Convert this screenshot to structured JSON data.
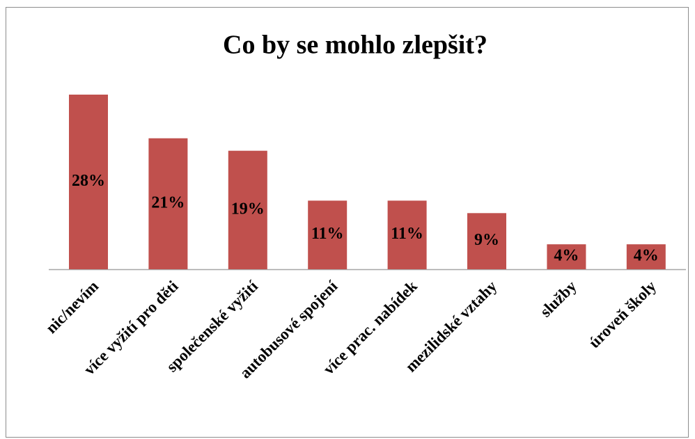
{
  "chart_data": {
    "type": "bar",
    "title": "Co by se mohlo zlepšit?",
    "categories": [
      "nic/nevím",
      "více vyžití pro děti",
      "společenské vyžití",
      "autobusové spojení",
      "více prac. nabídek",
      "mezilidské vztahy",
      "služby",
      "úroveň školy"
    ],
    "values": [
      28,
      21,
      19,
      11,
      11,
      9,
      4,
      4
    ],
    "value_labels": [
      "28%",
      "21%",
      "19%",
      "11%",
      "11%",
      "9%",
      "4%",
      "4%"
    ],
    "color": "#c0504d"
  }
}
